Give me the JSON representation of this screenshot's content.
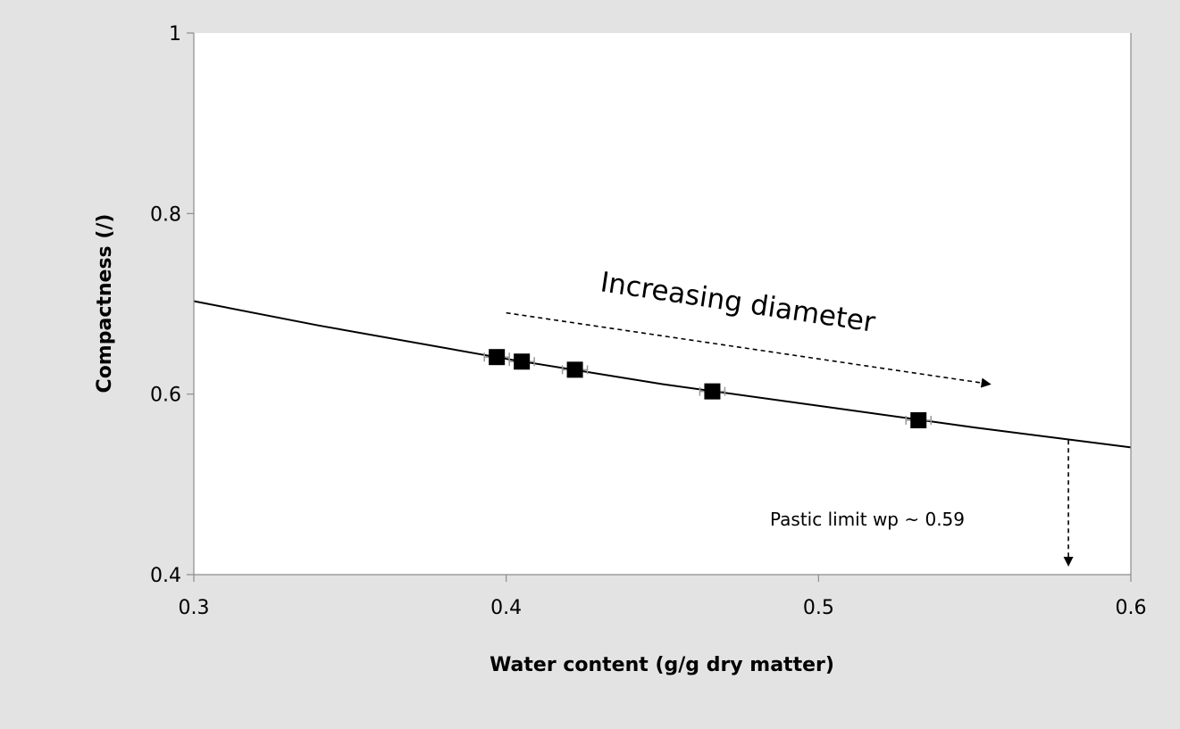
{
  "chart_data": {
    "type": "scatter",
    "title": "",
    "xlabel": "Water content (g/g dry matter)",
    "ylabel": "Compactness (/)",
    "xlim": [
      0.3,
      0.6
    ],
    "ylim": [
      0.4,
      1.0
    ],
    "x_ticks": [
      0.3,
      0.4,
      0.5,
      0.6
    ],
    "y_ticks": [
      0.4,
      0.6,
      0.8,
      1.0
    ],
    "x_tick_labels": [
      "0.3",
      "0.4",
      "0.5",
      "0.6"
    ],
    "y_tick_labels": [
      "0.4",
      "0.6",
      "0.8",
      "1"
    ],
    "grid": false,
    "points": [
      {
        "x": 0.397,
        "y": 0.641
      },
      {
        "x": 0.405,
        "y": 0.636
      },
      {
        "x": 0.422,
        "y": 0.627
      },
      {
        "x": 0.466,
        "y": 0.603
      },
      {
        "x": 0.532,
        "y": 0.571
      }
    ],
    "fit_line": [
      {
        "x": 0.3,
        "y": 0.703
      },
      {
        "x": 0.34,
        "y": 0.676
      },
      {
        "x": 0.4,
        "y": 0.639
      },
      {
        "x": 0.45,
        "y": 0.611
      },
      {
        "x": 0.5,
        "y": 0.587
      },
      {
        "x": 0.55,
        "y": 0.563
      },
      {
        "x": 0.6,
        "y": 0.541
      }
    ],
    "annotations": {
      "trend": {
        "text": "Increasing diameter",
        "arrow_from": {
          "x": 0.4,
          "y": 0.69
        },
        "arrow_to": {
          "x": 0.555,
          "y": 0.611
        }
      },
      "plastic_limit": {
        "text": "Pastic limit wp ~ 0.59",
        "arrow_from": {
          "x": 0.58,
          "y": 0.549
        },
        "arrow_to": {
          "x": 0.58,
          "y": 0.41
        }
      }
    },
    "colors": {
      "background": "#e3e3e3",
      "plot_area": "#ffffff",
      "axis": "#8c8c8c",
      "line": "#000000",
      "marker": "#000000",
      "text": "#000000"
    }
  }
}
